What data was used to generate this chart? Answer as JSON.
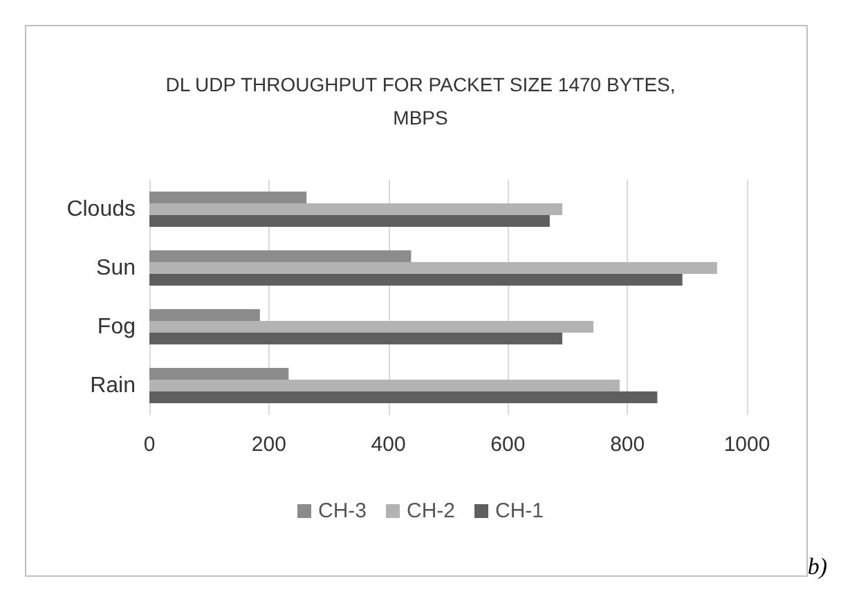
{
  "chart_data": {
    "type": "bar",
    "orientation": "horizontal",
    "title": "DL UDP THROUGHPUT FOR PACKET SIZE 1470 BYTES,\nMBPS",
    "categories": [
      "Clouds",
      "Sun",
      "Fog",
      "Rain"
    ],
    "series": [
      {
        "name": "CH-3",
        "color": "#8c8c8c",
        "values": [
          263,
          438,
          185,
          233
        ]
      },
      {
        "name": "CH-2",
        "color": "#b3b3b3",
        "values": [
          691,
          950,
          743,
          787
        ]
      },
      {
        "name": "CH-1",
        "color": "#5f5f5f",
        "values": [
          670,
          892,
          691,
          850
        ]
      }
    ],
    "xlim": [
      0,
      1000
    ],
    "xticks": [
      0,
      200,
      400,
      600,
      800,
      1000
    ],
    "grid": "x",
    "legend": "bottom",
    "annotations": [
      "b)"
    ]
  }
}
